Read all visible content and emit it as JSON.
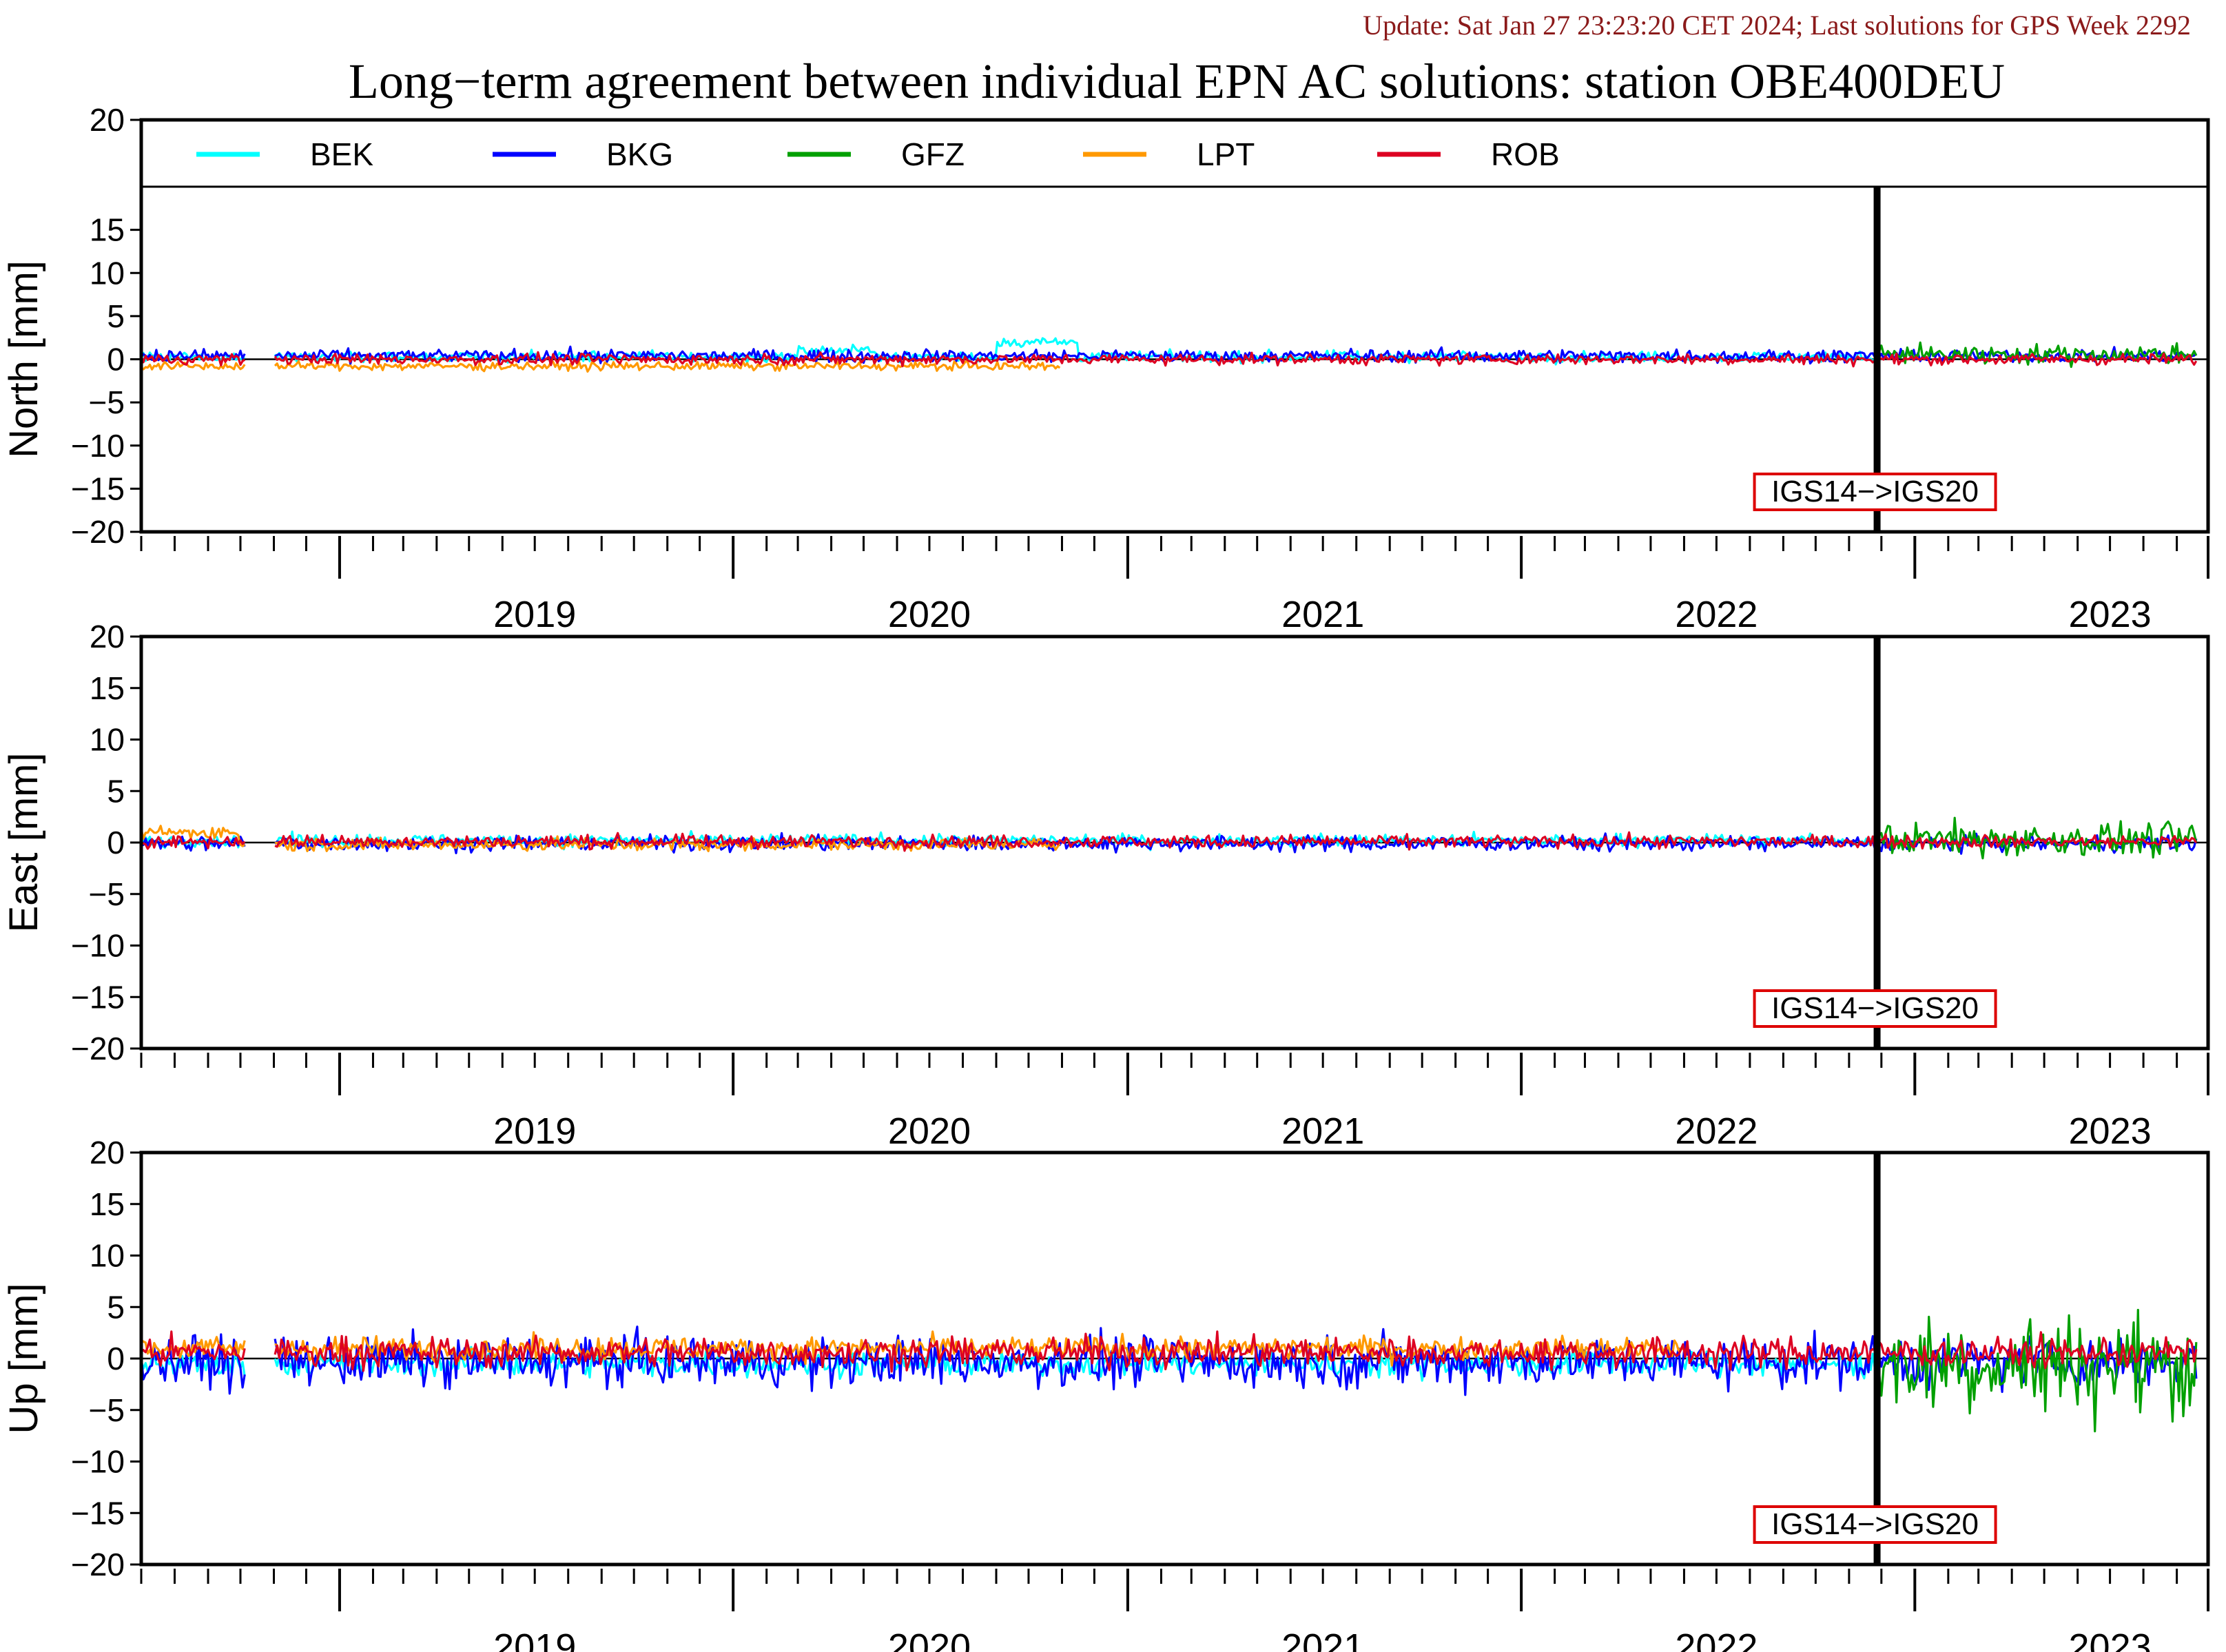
{
  "header": {
    "update_text": "Update: Sat Jan 27 23:23:20 CET 2024; Last solutions for GPS Week 2292",
    "title": "Long−term agreement between individual EPN AC solutions: station OBE400DEU"
  },
  "colors": {
    "BEK": "#00ffff",
    "BKG": "#0000ff",
    "GFZ": "#00a000",
    "LPT": "#ff9900",
    "ROB": "#dd0022",
    "annotation_border": "#dd0000",
    "update_text": "#8b1a1a"
  },
  "chart_data": [
    {
      "type": "line",
      "panel": "north",
      "ylabel": "North [mm]",
      "ylim": [
        -20,
        20
      ],
      "yticks": [
        "20",
        "15",
        "10",
        "5",
        "0",
        "−5",
        "−10",
        "−15",
        "−20"
      ],
      "xlim": [
        "2018-07-01",
        "2023-09-30"
      ],
      "x_tick_labels": [
        "2019",
        "2020",
        "2021",
        "2022",
        "2023"
      ],
      "grid": false,
      "zero_line": true,
      "legend": {
        "placement": "top",
        "entries": [
          "BEK",
          "BKG",
          "GFZ",
          "LPT",
          "ROB"
        ]
      },
      "annotation": {
        "text": "IGS14−>IGS20",
        "x": "2022-11-27"
      },
      "series": [
        {
          "name": "BEK",
          "start": "2018-07-01",
          "end": "2022-11-27",
          "mean": 0.3,
          "spread": 0.5,
          "bumps": [
            {
              "from": "2020-03-01",
              "to": "2020-05-15",
              "mean": 1.0
            },
            {
              "from": "2020-09-01",
              "to": "2020-11-15",
              "mean": 2.0
            }
          ]
        },
        {
          "name": "BKG",
          "start": "2018-07-01",
          "end": "2023-09-20",
          "mean": 0.4,
          "spread": 0.6
        },
        {
          "name": "GFZ",
          "start": "2022-11-27",
          "end": "2023-09-20",
          "mean": 0.6,
          "spread": 0.9
        },
        {
          "name": "LPT",
          "start": "2018-07-01",
          "end": "2020-10-31",
          "mean": -0.8,
          "spread": 0.4
        },
        {
          "name": "ROB",
          "start": "2018-07-01",
          "end": "2023-09-20",
          "mean": 0.0,
          "spread": 0.5
        }
      ]
    },
    {
      "type": "line",
      "panel": "east",
      "ylabel": "East [mm]",
      "ylim": [
        -20,
        20
      ],
      "yticks": [
        "20",
        "15",
        "10",
        "5",
        "0",
        "−5",
        "−10",
        "−15",
        "−20"
      ],
      "xlim": [
        "2018-07-01",
        "2023-09-30"
      ],
      "x_tick_labels": [
        "2019",
        "2020",
        "2021",
        "2022",
        "2023"
      ],
      "grid": false,
      "zero_line": true,
      "annotation": {
        "text": "IGS14−>IGS20",
        "x": "2022-11-27"
      },
      "series": [
        {
          "name": "BEK",
          "start": "2018-07-01",
          "end": "2022-11-27",
          "mean": 0.2,
          "spread": 0.5
        },
        {
          "name": "BKG",
          "start": "2018-07-01",
          "end": "2023-09-20",
          "mean": -0.1,
          "spread": 0.6
        },
        {
          "name": "GFZ",
          "start": "2022-11-27",
          "end": "2023-09-20",
          "mean": 0.3,
          "spread": 1.4
        },
        {
          "name": "LPT",
          "start": "2018-07-01",
          "end": "2020-10-31",
          "mean": -0.2,
          "spread": 0.5,
          "bumps": [
            {
              "from": "2018-07-01",
              "to": "2018-09-30",
              "mean": 1.0
            }
          ]
        },
        {
          "name": "ROB",
          "start": "2018-07-01",
          "end": "2023-09-20",
          "mean": 0.1,
          "spread": 0.5
        }
      ]
    },
    {
      "type": "line",
      "panel": "up",
      "ylabel": "Up [mm]",
      "ylim": [
        -20,
        20
      ],
      "yticks": [
        "20",
        "15",
        "10",
        "5",
        "0",
        "−5",
        "−10",
        "−15",
        "−20"
      ],
      "xlim": [
        "2018-07-01",
        "2023-09-30"
      ],
      "x_tick_labels": [
        "2019",
        "2020",
        "2021",
        "2022",
        "2023"
      ],
      "grid": false,
      "zero_line": true,
      "annotation": {
        "text": "IGS14−>IGS20",
        "x": "2022-11-27"
      },
      "series": [
        {
          "name": "BEK",
          "start": "2018-07-01",
          "end": "2022-11-27",
          "mean": -0.5,
          "spread": 1.0
        },
        {
          "name": "BKG",
          "start": "2018-07-01",
          "end": "2023-09-20",
          "mean": -0.3,
          "spread": 2.0
        },
        {
          "name": "GFZ",
          "start": "2022-11-27",
          "end": "2023-09-20",
          "mean": -0.5,
          "spread": 4.0
        },
        {
          "name": "LPT",
          "start": "2018-07-01",
          "end": "2022-05-31",
          "mean": 1.0,
          "spread": 0.9
        },
        {
          "name": "ROB",
          "start": "2018-07-01",
          "end": "2023-09-20",
          "mean": 0.6,
          "spread": 1.2
        }
      ]
    }
  ]
}
